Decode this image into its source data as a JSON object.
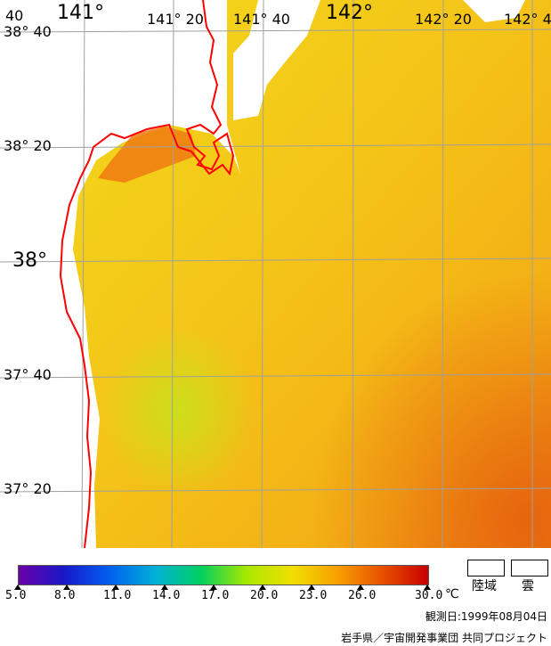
{
  "map": {
    "longitude_labels": [
      {
        "text": "141°",
        "size": "big"
      },
      {
        "text": "141° 20",
        "size": "med"
      },
      {
        "text": "141° 40",
        "size": "med"
      },
      {
        "text": "142°",
        "size": "big"
      },
      {
        "text": "142° 20",
        "size": "med"
      },
      {
        "text": "142° 4",
        "size": "med"
      }
    ],
    "latitude_labels": [
      {
        "text": "38° 40",
        "size": "med"
      },
      {
        "text": "38° 20",
        "size": "med"
      },
      {
        "text": "38°",
        "size": "big"
      },
      {
        "text": "37° 40",
        "size": "med"
      },
      {
        "text": "37° 20",
        "size": "med"
      }
    ],
    "corner_label": "40",
    "coastline_color": "#ff0000",
    "grid_color": "#a0a0a0"
  },
  "colorbar": {
    "ticks": [
      "5.0",
      "8.0",
      "11.0",
      "14.0",
      "17.0",
      "20.0",
      "23.0",
      "26.0",
      "30.0"
    ],
    "unit": "℃",
    "colors": [
      "#6a00a8",
      "#1818c8",
      "#0060f0",
      "#00b0d8",
      "#00d060",
      "#a8e800",
      "#f0e000",
      "#f8a000",
      "#e85000",
      "#c80000"
    ]
  },
  "legend": {
    "land_label": "陸域",
    "cloud_label": "雲"
  },
  "footer": {
    "observation_date": "観測日:1999年08月04日",
    "credit": "岩手県／宇宙開発事業団 共同プロジェクト"
  }
}
